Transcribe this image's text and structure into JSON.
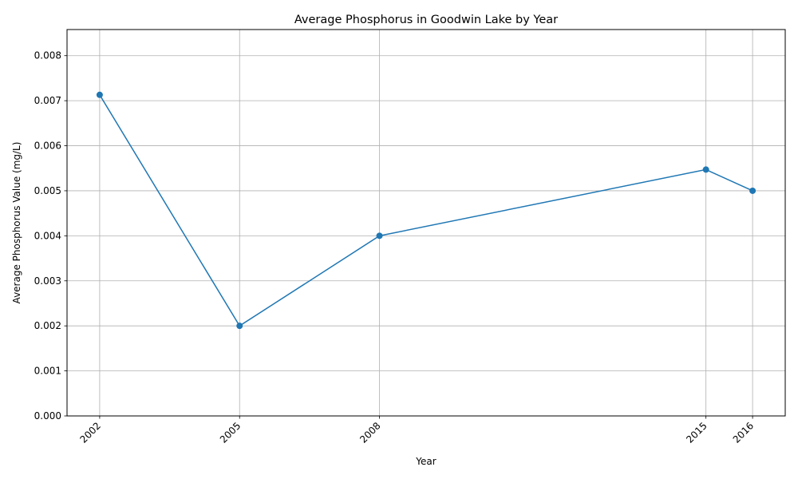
{
  "chart_data": {
    "type": "line",
    "title": "Average Phosphorus in Goodwin Lake by Year",
    "xlabel": "Year",
    "ylabel": "Average Phosphorus Value (mg/L)",
    "x": [
      2002,
      2005,
      2008,
      2015,
      2016
    ],
    "x_tick_labels": [
      "2002",
      "2005",
      "2008",
      "2015",
      "2016"
    ],
    "series": [
      {
        "values": [
          0.00713,
          0.002,
          0.004,
          0.00547,
          0.005
        ]
      }
    ],
    "xlim": [
      2001.3,
      2016.7
    ],
    "ylim": [
      0,
      0.00858
    ],
    "y_ticks": [
      0,
      0.001,
      0.002,
      0.003,
      0.004,
      0.005,
      0.006,
      0.007,
      0.008
    ],
    "y_tick_labels": [
      "0.000",
      "0.001",
      "0.002",
      "0.003",
      "0.004",
      "0.005",
      "0.006",
      "0.007",
      "0.008"
    ],
    "grid": true,
    "line_color": "#1f77b4",
    "marker": "circle"
  }
}
